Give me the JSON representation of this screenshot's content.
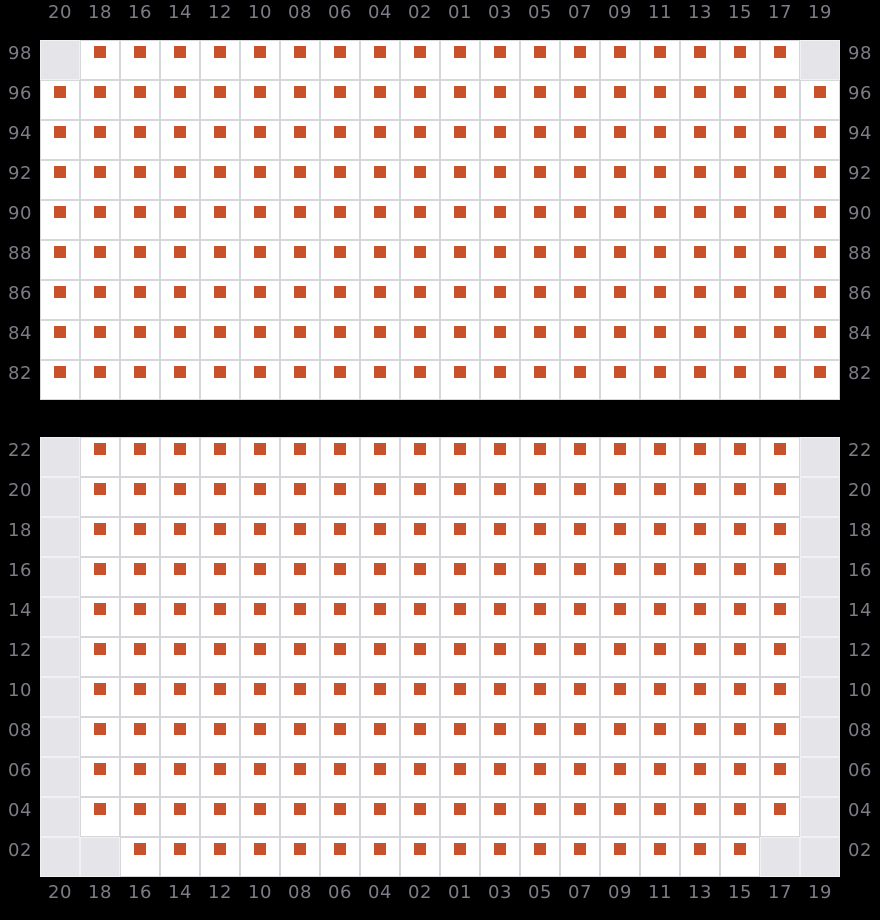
{
  "colors": {
    "background": "#000000",
    "label": "#7c7c86",
    "cell_fill": "#ffffff",
    "cell_border": "#d5d5da",
    "empty_fill": "#e5e4e8",
    "empty_border": "#f1f1f4",
    "marker": "#c6512a"
  },
  "chart_data": {
    "type": "heatmap",
    "title": "",
    "legend_position": "none",
    "grid": "on",
    "cell_size_px": 40,
    "marker_shape": "square",
    "marker_color": "#c6512a",
    "empty_cell_color": "#e5e4e8",
    "value_encoding": "1 = orange square marker present, 0 = gray empty cell",
    "columns": [
      "20",
      "18",
      "16",
      "14",
      "12",
      "10",
      "08",
      "06",
      "04",
      "02",
      "01",
      "03",
      "05",
      "07",
      "09",
      "11",
      "13",
      "15",
      "17",
      "19"
    ],
    "panels": [
      {
        "id": "top",
        "column_labels_position": "top",
        "row_labels": [
          "98",
          "96",
          "94",
          "92",
          "90",
          "88",
          "86",
          "84",
          "82"
        ],
        "row_labels_sides": [
          "left",
          "right"
        ],
        "cells": [
          [
            0,
            1,
            1,
            1,
            1,
            1,
            1,
            1,
            1,
            1,
            1,
            1,
            1,
            1,
            1,
            1,
            1,
            1,
            1,
            0
          ],
          [
            1,
            1,
            1,
            1,
            1,
            1,
            1,
            1,
            1,
            1,
            1,
            1,
            1,
            1,
            1,
            1,
            1,
            1,
            1,
            1
          ],
          [
            1,
            1,
            1,
            1,
            1,
            1,
            1,
            1,
            1,
            1,
            1,
            1,
            1,
            1,
            1,
            1,
            1,
            1,
            1,
            1
          ],
          [
            1,
            1,
            1,
            1,
            1,
            1,
            1,
            1,
            1,
            1,
            1,
            1,
            1,
            1,
            1,
            1,
            1,
            1,
            1,
            1
          ],
          [
            1,
            1,
            1,
            1,
            1,
            1,
            1,
            1,
            1,
            1,
            1,
            1,
            1,
            1,
            1,
            1,
            1,
            1,
            1,
            1
          ],
          [
            1,
            1,
            1,
            1,
            1,
            1,
            1,
            1,
            1,
            1,
            1,
            1,
            1,
            1,
            1,
            1,
            1,
            1,
            1,
            1
          ],
          [
            1,
            1,
            1,
            1,
            1,
            1,
            1,
            1,
            1,
            1,
            1,
            1,
            1,
            1,
            1,
            1,
            1,
            1,
            1,
            1
          ],
          [
            1,
            1,
            1,
            1,
            1,
            1,
            1,
            1,
            1,
            1,
            1,
            1,
            1,
            1,
            1,
            1,
            1,
            1,
            1,
            1
          ],
          [
            1,
            1,
            1,
            1,
            1,
            1,
            1,
            1,
            1,
            1,
            1,
            1,
            1,
            1,
            1,
            1,
            1,
            1,
            1,
            1
          ]
        ]
      },
      {
        "id": "bottom",
        "column_labels_position": "bottom",
        "row_labels": [
          "22",
          "20",
          "18",
          "16",
          "14",
          "12",
          "10",
          "08",
          "06",
          "04",
          "02"
        ],
        "row_labels_sides": [
          "left",
          "right"
        ],
        "cells": [
          [
            0,
            1,
            1,
            1,
            1,
            1,
            1,
            1,
            1,
            1,
            1,
            1,
            1,
            1,
            1,
            1,
            1,
            1,
            1,
            0
          ],
          [
            0,
            1,
            1,
            1,
            1,
            1,
            1,
            1,
            1,
            1,
            1,
            1,
            1,
            1,
            1,
            1,
            1,
            1,
            1,
            0
          ],
          [
            0,
            1,
            1,
            1,
            1,
            1,
            1,
            1,
            1,
            1,
            1,
            1,
            1,
            1,
            1,
            1,
            1,
            1,
            1,
            0
          ],
          [
            0,
            1,
            1,
            1,
            1,
            1,
            1,
            1,
            1,
            1,
            1,
            1,
            1,
            1,
            1,
            1,
            1,
            1,
            1,
            0
          ],
          [
            0,
            1,
            1,
            1,
            1,
            1,
            1,
            1,
            1,
            1,
            1,
            1,
            1,
            1,
            1,
            1,
            1,
            1,
            1,
            0
          ],
          [
            0,
            1,
            1,
            1,
            1,
            1,
            1,
            1,
            1,
            1,
            1,
            1,
            1,
            1,
            1,
            1,
            1,
            1,
            1,
            0
          ],
          [
            0,
            1,
            1,
            1,
            1,
            1,
            1,
            1,
            1,
            1,
            1,
            1,
            1,
            1,
            1,
            1,
            1,
            1,
            1,
            0
          ],
          [
            0,
            1,
            1,
            1,
            1,
            1,
            1,
            1,
            1,
            1,
            1,
            1,
            1,
            1,
            1,
            1,
            1,
            1,
            1,
            0
          ],
          [
            0,
            1,
            1,
            1,
            1,
            1,
            1,
            1,
            1,
            1,
            1,
            1,
            1,
            1,
            1,
            1,
            1,
            1,
            1,
            0
          ],
          [
            0,
            1,
            1,
            1,
            1,
            1,
            1,
            1,
            1,
            1,
            1,
            1,
            1,
            1,
            1,
            1,
            1,
            1,
            1,
            0
          ],
          [
            0,
            0,
            1,
            1,
            1,
            1,
            1,
            1,
            1,
            1,
            1,
            1,
            1,
            1,
            1,
            1,
            1,
            1,
            0,
            0
          ]
        ]
      }
    ]
  }
}
